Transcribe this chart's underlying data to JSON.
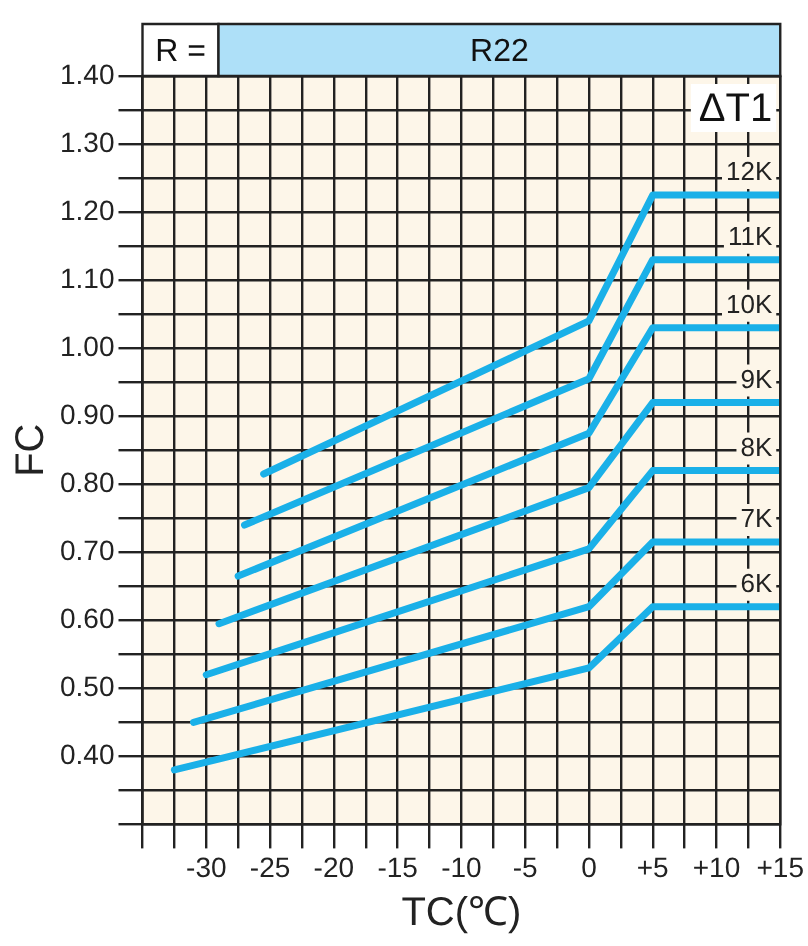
{
  "chart_data": {
    "type": "line",
    "title": "R =",
    "subtitle": "R22",
    "legend_title": "ΔT1",
    "xlabel": "TC(℃)",
    "ylabel": "FC",
    "xlim": [
      -35,
      15
    ],
    "xticks": [
      {
        "value": -35,
        "label": null
      },
      {
        "value": -32.5,
        "label": null
      },
      {
        "value": -30,
        "label": "-30"
      },
      {
        "value": -27.5,
        "label": null
      },
      {
        "value": -25,
        "label": "-25"
      },
      {
        "value": -22.5,
        "label": null
      },
      {
        "value": -20,
        "label": "-20"
      },
      {
        "value": -17.5,
        "label": null
      },
      {
        "value": -15,
        "label": "-15"
      },
      {
        "value": -12.5,
        "label": null
      },
      {
        "value": -10,
        "label": "-10"
      },
      {
        "value": -7.5,
        "label": null
      },
      {
        "value": -5,
        "label": "-5"
      },
      {
        "value": -2.5,
        "label": null
      },
      {
        "value": 0,
        "label": "0"
      },
      {
        "value": 2.5,
        "label": null
      },
      {
        "value": 5,
        "label": "+5"
      },
      {
        "value": 7.5,
        "label": null
      },
      {
        "value": 10,
        "label": "+10"
      },
      {
        "value": 12.5,
        "label": null
      },
      {
        "value": 15,
        "label": "+15"
      }
    ],
    "ylim": [
      0.3,
      1.4
    ],
    "yticks": [
      {
        "value": 0.3,
        "label": null
      },
      {
        "value": 0.35,
        "label": null
      },
      {
        "value": 0.4,
        "label": "0.40"
      },
      {
        "value": 0.45,
        "label": null
      },
      {
        "value": 0.5,
        "label": "0.50"
      },
      {
        "value": 0.55,
        "label": null
      },
      {
        "value": 0.6,
        "label": "0.60"
      },
      {
        "value": 0.65,
        "label": null
      },
      {
        "value": 0.7,
        "label": "0.70"
      },
      {
        "value": 0.75,
        "label": null
      },
      {
        "value": 0.8,
        "label": "0.80"
      },
      {
        "value": 0.85,
        "label": null
      },
      {
        "value": 0.9,
        "label": "0.90"
      },
      {
        "value": 0.95,
        "label": null
      },
      {
        "value": 1.0,
        "label": "1.00"
      },
      {
        "value": 1.05,
        "label": null
      },
      {
        "value": 1.1,
        "label": "1.10"
      },
      {
        "value": 1.15,
        "label": null
      },
      {
        "value": 1.2,
        "label": "1.20"
      },
      {
        "value": 1.25,
        "label": null
      },
      {
        "value": 1.3,
        "label": "1.30"
      },
      {
        "value": 1.35,
        "label": null
      },
      {
        "value": 1.4,
        "label": "1.40"
      }
    ],
    "grid": true,
    "legend": false,
    "marker": "none",
    "line_style": "solid",
    "series": [
      {
        "name": "12K",
        "color": "#1ab0e8",
        "x": [
          -25.5,
          0,
          5,
          15
        ],
        "values": [
          0.815,
          1.04,
          1.225,
          1.225
        ]
      },
      {
        "name": "11K",
        "color": "#1ab0e8",
        "x": [
          -27,
          0,
          5,
          15
        ],
        "values": [
          0.74,
          0.955,
          1.13,
          1.13
        ]
      },
      {
        "name": "10K",
        "color": "#1ab0e8",
        "x": [
          -27.5,
          0,
          5,
          15
        ],
        "values": [
          0.665,
          0.875,
          1.03,
          1.03
        ]
      },
      {
        "name": "9K",
        "color": "#1ab0e8",
        "x": [
          -29,
          0,
          5,
          15
        ],
        "values": [
          0.595,
          0.795,
          0.92,
          0.92
        ]
      },
      {
        "name": "8K",
        "color": "#1ab0e8",
        "x": [
          -30,
          0,
          5,
          15
        ],
        "values": [
          0.52,
          0.705,
          0.82,
          0.82
        ]
      },
      {
        "name": "7K",
        "color": "#1ab0e8",
        "x": [
          -31,
          0,
          5,
          15
        ],
        "values": [
          0.45,
          0.62,
          0.715,
          0.715
        ]
      },
      {
        "name": "6K",
        "color": "#1ab0e8",
        "x": [
          -32.5,
          0,
          5,
          15
        ],
        "values": [
          0.38,
          0.53,
          0.62,
          0.62
        ]
      }
    ]
  }
}
